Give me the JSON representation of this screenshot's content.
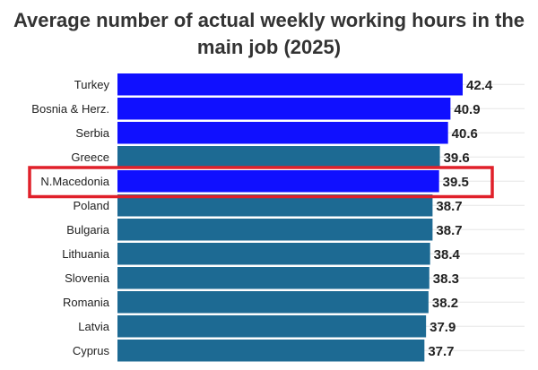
{
  "chart_data": {
    "type": "bar",
    "orientation": "horizontal",
    "title": "Average number of actual weekly working hours in the main job (2025)",
    "categories": [
      "Turkey",
      "Bosnia & Herz.",
      "Serbia",
      "Greece",
      "N.Macedonia",
      "Poland",
      "Bulgaria",
      "Lithuania",
      "Slovenia",
      "Romania",
      "Latvia",
      "Cyprus"
    ],
    "values": [
      42.4,
      40.9,
      40.6,
      39.6,
      39.5,
      38.7,
      38.7,
      38.4,
      38.3,
      38.2,
      37.9,
      37.7
    ],
    "value_labels": [
      "42.4",
      "40.9",
      "40.6",
      "39.6",
      "39.5",
      "38.7",
      "38.7",
      "38.4",
      "38.3",
      "38.2",
      "37.9",
      "37.7"
    ],
    "bar_colors": [
      "#1010ff",
      "#1010ff",
      "#1010ff",
      "#1d6a93",
      "#1010ff",
      "#1d6a93",
      "#1d6a93",
      "#1d6a93",
      "#1d6a93",
      "#1d6a93",
      "#1d6a93",
      "#1d6a93"
    ],
    "xlim": [
      0,
      42.4
    ],
    "grid": true,
    "highlight": {
      "category": "N.Macedonia",
      "color": "#e0202a"
    },
    "xlabel": "",
    "ylabel": ""
  }
}
